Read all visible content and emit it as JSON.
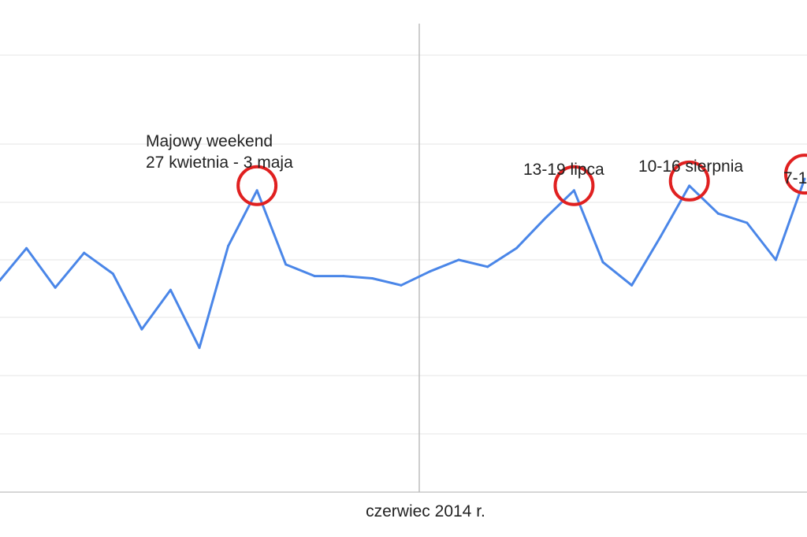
{
  "chart_data": {
    "type": "line",
    "title": "",
    "xlabel": "",
    "ylabel": "",
    "x_tick_labels": [
      "czerwiec 2014 r."
    ],
    "grid": true,
    "series": [
      {
        "color": "#4a86e8",
        "values": [
          40,
          55,
          38,
          53,
          44,
          20,
          37,
          12,
          56,
          80,
          48,
          43,
          43,
          42,
          39,
          45,
          50,
          47,
          55,
          68,
          80,
          49,
          39,
          60,
          82,
          70,
          66,
          50,
          85
        ]
      }
    ],
    "annotations": [
      {
        "lines": [
          "Majowy weekend",
          "27 kwietnia - 3 maja"
        ],
        "point_index": 9
      },
      {
        "lines": [
          "13-19 lipca"
        ],
        "point_index": 20
      },
      {
        "lines": [
          "10-16 sierpnia"
        ],
        "point_index": 24
      },
      {
        "lines": [
          "7-1"
        ],
        "point_index": 28
      }
    ],
    "highlight_color": "#e02020"
  }
}
